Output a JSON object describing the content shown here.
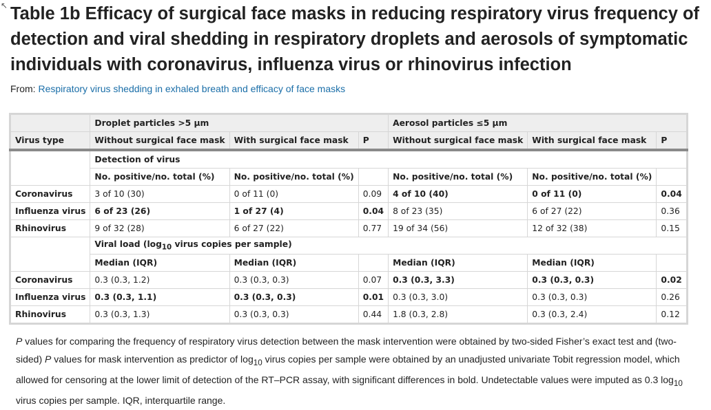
{
  "title": "Table 1b Efficacy of surgical face masks in reducing respiratory virus frequency of detection and viral shedding in respiratory droplets and aerosols of symptomatic individuals with coronavirus, influenza virus or rhinovirus infection",
  "from_label": "From: ",
  "from_link": "Respiratory virus shedding in exhaled breath and efficacy of face masks",
  "table": {
    "group_headers": [
      "Droplet particles >5 μm",
      "Aerosol particles ≤5 μm"
    ],
    "columns": [
      "Virus type",
      "Without surgical face mask",
      "With surgical face mask",
      "P",
      "Without surgical face mask",
      "With surgical face mask",
      "P"
    ],
    "sections": [
      {
        "title": "Detection of virus",
        "subheaders": [
          "No. positive/no. total (%)",
          "No. positive/no. total (%)",
          "No. positive/no. total (%)",
          "No. positive/no. total (%)"
        ],
        "rows": [
          {
            "cells": [
              "Coronavirus",
              "3 of 10 (30)",
              "0 of 11 (0)",
              "0.09",
              "4 of 10 (40)",
              "0 of 11 (0)",
              "0.04"
            ],
            "bold": [
              true,
              false,
              false,
              false,
              true,
              true,
              true
            ]
          },
          {
            "cells": [
              "Influenza virus",
              "6 of 23 (26)",
              "1 of 27 (4)",
              "0.04",
              "8 of 23 (35)",
              "6 of 27 (22)",
              "0.36"
            ],
            "bold": [
              true,
              true,
              true,
              true,
              false,
              false,
              false
            ]
          },
          {
            "cells": [
              "Rhinovirus",
              "9 of 32 (28)",
              "6 of 27 (22)",
              "0.77",
              "19 of 34 (56)",
              "12 of 32 (38)",
              "0.15"
            ],
            "bold": [
              true,
              false,
              false,
              false,
              false,
              false,
              false
            ]
          }
        ]
      },
      {
        "title": "Viral load (log10 virus copies per sample)",
        "title_pre": "Viral load (log",
        "title_sub": "10",
        "title_post": " virus copies per sample)",
        "subheaders": [
          "Median (IQR)",
          "Median (IQR)",
          "Median (IQR)",
          "Median (IQR)"
        ],
        "rows": [
          {
            "cells": [
              "Coronavirus",
              "0.3 (0.3, 1.2)",
              "0.3 (0.3, 0.3)",
              "0.07",
              "0.3 (0.3, 3.3)",
              "0.3 (0.3, 0.3)",
              "0.02"
            ],
            "bold": [
              true,
              false,
              false,
              false,
              true,
              true,
              true
            ]
          },
          {
            "cells": [
              "Influenza virus",
              "0.3 (0.3, 1.1)",
              "0.3 (0.3, 0.3)",
              "0.01",
              "0.3 (0.3, 3.0)",
              "0.3 (0.3, 0.3)",
              "0.26"
            ],
            "bold": [
              true,
              true,
              true,
              true,
              false,
              false,
              false
            ]
          },
          {
            "cells": [
              "Rhinovirus",
              "0.3 (0.3, 1.3)",
              "0.3 (0.3, 0.3)",
              "0.44",
              "1.8 (0.3, 2.8)",
              "0.3 (0.3, 2.4)",
              "0.12"
            ],
            "bold": [
              true,
              false,
              false,
              false,
              false,
              false,
              false
            ]
          }
        ]
      }
    ]
  },
  "footnote": {
    "p1": "P",
    "t1": " values for comparing the frequency of respiratory virus detection between the mask intervention were obtained by two-sided Fisher’s exact test and (two-sided) ",
    "p2": "P",
    "t2": " values for mask intervention as predictor of log",
    "sub1": "10",
    "t3": " virus copies per sample were obtained by an unadjusted univariate Tobit regression model, which allowed for censoring at the lower limit of detection of the RT–PCR assay, with significant differences in bold. Undetectable values were imputed as 0.3 log",
    "sub2": "10",
    "t4": " virus copies per sample. IQR, interquartile range."
  }
}
